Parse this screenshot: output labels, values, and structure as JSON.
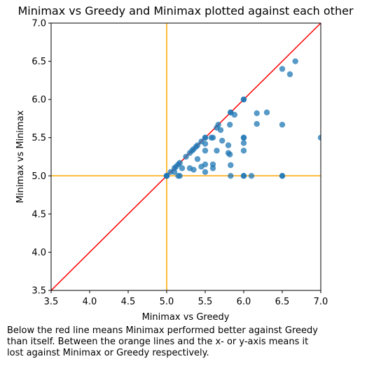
{
  "chart_data": {
    "type": "scatter",
    "title": "Minimax vs Greedy and Minimax plotted against each other",
    "xlabel": "Minimax vs Greedy",
    "ylabel": "Minimax vs Minimax",
    "xlim": [
      3.5,
      7.0
    ],
    "ylim": [
      3.5,
      7.0
    ],
    "xticks": [
      "3.5",
      "4.0",
      "4.5",
      "5.0",
      "5.5",
      "6.0",
      "6.5",
      "7.0"
    ],
    "yticks": [
      "3.5",
      "4.0",
      "4.5",
      "5.0",
      "5.5",
      "6.0",
      "6.5",
      "7.0"
    ],
    "grid": false,
    "point_color": "#1f77b4",
    "diagonal_color": "#ff0000",
    "threshold_color": "#ffa500",
    "threshold_x": 5.0,
    "threshold_y": 5.0,
    "points": [
      [
        5.0,
        5.0
      ],
      [
        5.0,
        5.0
      ],
      [
        5.0,
        5.0
      ],
      [
        5.0,
        5.0
      ],
      [
        5.05,
        5.05
      ],
      [
        5.1,
        5.1
      ],
      [
        5.12,
        5.12
      ],
      [
        5.15,
        5.15
      ],
      [
        5.17,
        5.17
      ],
      [
        5.1,
        5.05
      ],
      [
        5.15,
        5.0
      ],
      [
        5.17,
        5.0
      ],
      [
        5.2,
        5.1
      ],
      [
        5.25,
        5.25
      ],
      [
        5.3,
        5.3
      ],
      [
        5.33,
        5.33
      ],
      [
        5.35,
        5.35
      ],
      [
        5.38,
        5.38
      ],
      [
        5.4,
        5.4
      ],
      [
        5.45,
        5.45
      ],
      [
        5.5,
        5.5
      ],
      [
        5.5,
        5.5
      ],
      [
        5.3,
        5.1
      ],
      [
        5.35,
        5.08
      ],
      [
        5.4,
        5.22
      ],
      [
        5.45,
        5.12
      ],
      [
        5.5,
        5.15
      ],
      [
        5.5,
        5.05
      ],
      [
        5.5,
        5.33
      ],
      [
        5.5,
        5.42
      ],
      [
        5.58,
        5.5
      ],
      [
        5.6,
        5.5
      ],
      [
        5.6,
        5.15
      ],
      [
        5.6,
        5.1
      ],
      [
        5.65,
        5.63
      ],
      [
        5.67,
        5.67
      ],
      [
        5.65,
        5.33
      ],
      [
        5.7,
        5.6
      ],
      [
        5.72,
        5.46
      ],
      [
        5.8,
        5.4
      ],
      [
        5.8,
        5.3
      ],
      [
        5.82,
        5.28
      ],
      [
        5.82,
        5.67
      ],
      [
        5.83,
        5.83
      ],
      [
        5.83,
        5.83
      ],
      [
        5.88,
        5.8
      ],
      [
        5.83,
        5.14
      ],
      [
        5.83,
        5.0
      ],
      [
        6.0,
        5.5
      ],
      [
        6.0,
        5.5
      ],
      [
        6.0,
        5.43
      ],
      [
        6.0,
        5.33
      ],
      [
        6.0,
        5.0
      ],
      [
        6.0,
        5.0
      ],
      [
        6.1,
        5.0
      ],
      [
        6.0,
        6.0
      ],
      [
        6.0,
        6.0
      ],
      [
        6.17,
        5.82
      ],
      [
        6.17,
        5.68
      ],
      [
        6.3,
        5.83
      ],
      [
        6.5,
        6.4
      ],
      [
        6.6,
        6.33
      ],
      [
        6.67,
        6.5
      ],
      [
        6.5,
        5.67
      ],
      [
        6.5,
        5.0
      ],
      [
        6.5,
        5.0
      ],
      [
        7.0,
        5.5
      ]
    ]
  },
  "caption": {
    "line1": "Below the red line means Minimax performed better against Greedy",
    "line2": "than itself. Between the orange lines and the x- or y-axis means it",
    "line3": "lost against Minimax or Greedy respectively."
  }
}
